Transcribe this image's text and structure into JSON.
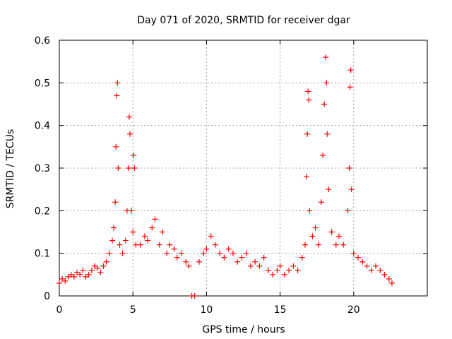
{
  "chart_data": {
    "type": "scatter",
    "title": "Day 071 of 2020, SRMTID for receiver dgar",
    "xlabel": "GPS time / hours",
    "ylabel": "SRMTID / TECUs",
    "xlim": [
      0,
      25
    ],
    "ylim": [
      0,
      0.6
    ],
    "grid": true,
    "xticks": [
      0,
      5,
      10,
      15,
      20
    ],
    "xtick_labels": [
      "0",
      "5",
      "10",
      "15",
      "20"
    ],
    "yticks": [
      0,
      0.1,
      0.2,
      0.3,
      0.4,
      0.5,
      0.6
    ],
    "ytick_labels": [
      "0",
      "0.1",
      "0.2",
      "0.3",
      "0.4",
      "0.5",
      "0.6"
    ],
    "series": [
      {
        "name": "SRMTID",
        "marker": "+",
        "color": "#ff0000",
        "points": [
          [
            0.0,
            0.03
          ],
          [
            0.2,
            0.04
          ],
          [
            0.4,
            0.035
          ],
          [
            0.6,
            0.045
          ],
          [
            0.8,
            0.05
          ],
          [
            1.0,
            0.045
          ],
          [
            1.2,
            0.055
          ],
          [
            1.4,
            0.05
          ],
          [
            1.6,
            0.06
          ],
          [
            1.8,
            0.045
          ],
          [
            2.0,
            0.05
          ],
          [
            2.2,
            0.06
          ],
          [
            2.4,
            0.07
          ],
          [
            2.6,
            0.065
          ],
          [
            2.8,
            0.055
          ],
          [
            3.0,
            0.07
          ],
          [
            3.2,
            0.08
          ],
          [
            3.4,
            0.1
          ],
          [
            3.6,
            0.13
          ],
          [
            3.7,
            0.16
          ],
          [
            3.8,
            0.22
          ],
          [
            3.85,
            0.35
          ],
          [
            3.9,
            0.47
          ],
          [
            3.95,
            0.5
          ],
          [
            4.0,
            0.3
          ],
          [
            4.1,
            0.12
          ],
          [
            4.3,
            0.1
          ],
          [
            4.5,
            0.13
          ],
          [
            4.6,
            0.2
          ],
          [
            4.7,
            0.3
          ],
          [
            4.75,
            0.42
          ],
          [
            4.8,
            0.38
          ],
          [
            4.9,
            0.2
          ],
          [
            5.0,
            0.15
          ],
          [
            5.05,
            0.33
          ],
          [
            5.1,
            0.3
          ],
          [
            5.2,
            0.12
          ],
          [
            5.5,
            0.12
          ],
          [
            5.8,
            0.14
          ],
          [
            6.0,
            0.13
          ],
          [
            6.3,
            0.16
          ],
          [
            6.5,
            0.18
          ],
          [
            6.8,
            0.12
          ],
          [
            7.0,
            0.15
          ],
          [
            7.3,
            0.1
          ],
          [
            7.5,
            0.12
          ],
          [
            7.8,
            0.11
          ],
          [
            8.0,
            0.09
          ],
          [
            8.3,
            0.1
          ],
          [
            8.6,
            0.08
          ],
          [
            8.8,
            0.07
          ],
          [
            9.0,
            0.0
          ],
          [
            9.2,
            0.0
          ],
          [
            9.5,
            0.08
          ],
          [
            9.8,
            0.1
          ],
          [
            10.0,
            0.11
          ],
          [
            10.3,
            0.14
          ],
          [
            10.6,
            0.12
          ],
          [
            10.9,
            0.1
          ],
          [
            11.2,
            0.09
          ],
          [
            11.5,
            0.11
          ],
          [
            11.8,
            0.1
          ],
          [
            12.1,
            0.08
          ],
          [
            12.4,
            0.09
          ],
          [
            12.7,
            0.1
          ],
          [
            13.0,
            0.07
          ],
          [
            13.3,
            0.08
          ],
          [
            13.6,
            0.07
          ],
          [
            13.9,
            0.09
          ],
          [
            14.2,
            0.06
          ],
          [
            14.5,
            0.05
          ],
          [
            14.8,
            0.06
          ],
          [
            15.0,
            0.07
          ],
          [
            15.3,
            0.05
          ],
          [
            15.6,
            0.06
          ],
          [
            15.9,
            0.07
          ],
          [
            16.2,
            0.06
          ],
          [
            16.5,
            0.09
          ],
          [
            16.7,
            0.12
          ],
          [
            16.8,
            0.28
          ],
          [
            16.85,
            0.38
          ],
          [
            16.9,
            0.48
          ],
          [
            16.95,
            0.46
          ],
          [
            17.0,
            0.2
          ],
          [
            17.2,
            0.14
          ],
          [
            17.4,
            0.16
          ],
          [
            17.6,
            0.12
          ],
          [
            17.8,
            0.22
          ],
          [
            17.9,
            0.33
          ],
          [
            18.0,
            0.45
          ],
          [
            18.1,
            0.56
          ],
          [
            18.15,
            0.5
          ],
          [
            18.2,
            0.38
          ],
          [
            18.3,
            0.25
          ],
          [
            18.5,
            0.15
          ],
          [
            18.8,
            0.12
          ],
          [
            19.0,
            0.14
          ],
          [
            19.3,
            0.12
          ],
          [
            19.6,
            0.2
          ],
          [
            19.7,
            0.3
          ],
          [
            19.75,
            0.49
          ],
          [
            19.8,
            0.53
          ],
          [
            19.85,
            0.25
          ],
          [
            20.0,
            0.1
          ],
          [
            20.3,
            0.09
          ],
          [
            20.6,
            0.08
          ],
          [
            20.9,
            0.07
          ],
          [
            21.2,
            0.06
          ],
          [
            21.5,
            0.07
          ],
          [
            21.8,
            0.06
          ],
          [
            22.1,
            0.05
          ],
          [
            22.4,
            0.04
          ],
          [
            22.6,
            0.03
          ]
        ]
      }
    ]
  }
}
